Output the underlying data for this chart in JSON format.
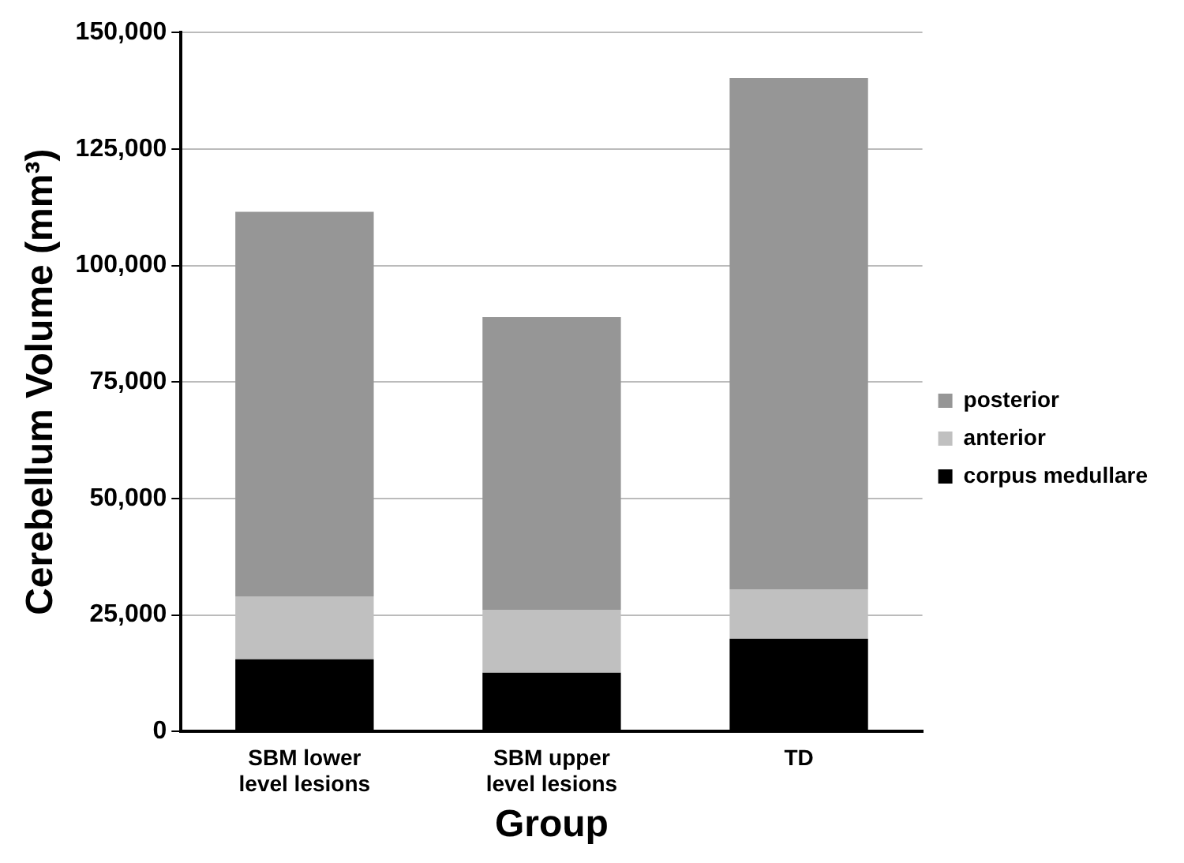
{
  "chart_data": {
    "type": "bar",
    "stacked": true,
    "xlabel": "Group",
    "ylabel": "Cerebellum Volume (mm³)",
    "categories": [
      "SBM lower level lesions",
      "SBM upper level lesions",
      "TD"
    ],
    "series": [
      {
        "name": "corpus medullare",
        "color": "#000000",
        "values": [
          15500,
          12600,
          19900
        ]
      },
      {
        "name": "anterior",
        "color": "#c0c0c0",
        "values": [
          13500,
          13500,
          10600
        ]
      },
      {
        "name": "posterior",
        "color": "#969696",
        "values": [
          82500,
          62800,
          109700
        ]
      }
    ],
    "ylim": [
      0,
      150000
    ],
    "yticks": [
      {
        "value": 0,
        "label": "0"
      },
      {
        "value": 25000,
        "label": "25,000"
      },
      {
        "value": 50000,
        "label": "50,000"
      },
      {
        "value": 75000,
        "label": "75,000"
      },
      {
        "value": 100000,
        "label": "100,000"
      },
      {
        "value": 125000,
        "label": "125,000"
      },
      {
        "value": 150000,
        "label": "150,000"
      }
    ],
    "grid": "y",
    "legend": "right"
  }
}
